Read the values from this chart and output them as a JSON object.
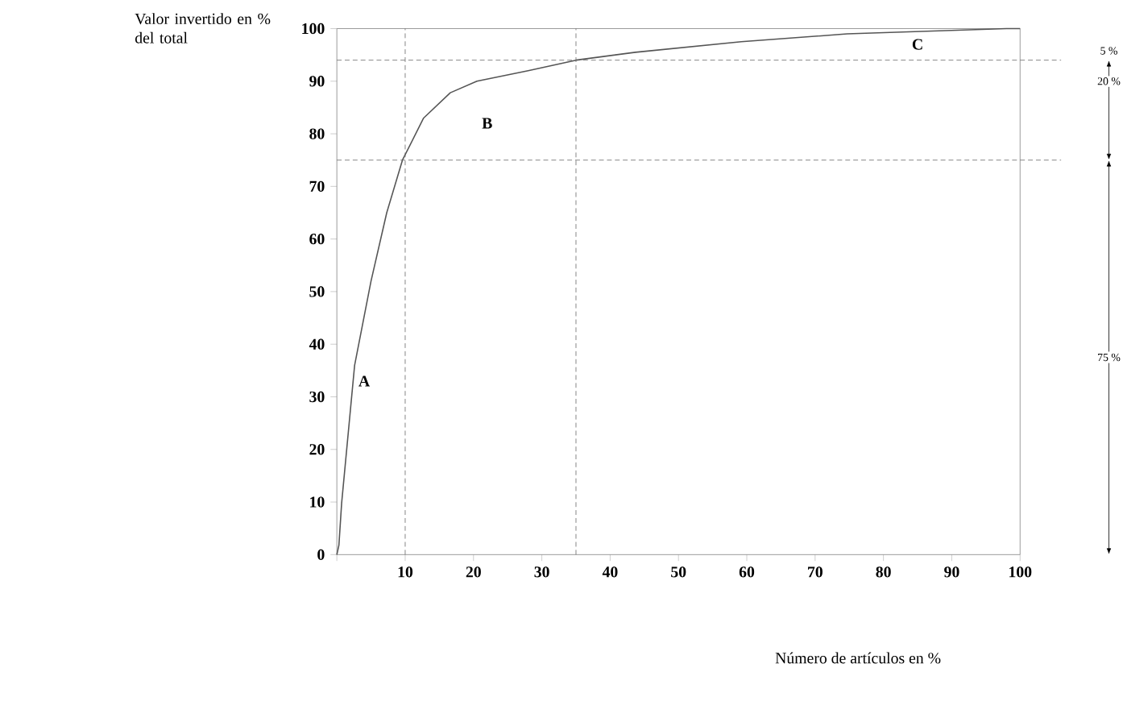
{
  "chart_data": {
    "type": "line",
    "xlabel": "Número de artículos en %",
    "ylabel": "Valor invertido en % del total",
    "x": [
      0,
      0.3,
      0.7,
      2.6,
      5,
      7.3,
      9.6,
      12.7,
      16.6,
      20.5,
      28,
      35,
      43.7,
      59.2,
      74.7,
      98,
      100
    ],
    "series": [
      {
        "color": "#555555",
        "values": [
          0,
          1.8,
          9.8,
          36,
          52,
          65,
          75,
          83,
          87.8,
          90,
          92,
          94,
          95.5,
          97.5,
          99,
          100,
          100
        ]
      }
    ],
    "xlim": [
      0,
      100
    ],
    "ylim": [
      0,
      100
    ],
    "xticks": [
      {
        "value": 0,
        "label": null
      },
      10,
      20,
      30,
      40,
      50,
      60,
      70,
      80,
      90,
      100
    ],
    "yticks": [
      0,
      10,
      20,
      30,
      40,
      50,
      60,
      70,
      80,
      90,
      100
    ],
    "grid": false,
    "marker": "none",
    "line_style": "solid",
    "ref_lines": [
      {
        "axis": "x",
        "value": 10,
        "color": "#666666",
        "line_style": "dashed"
      },
      {
        "axis": "x",
        "value": 35,
        "color": "#666666",
        "line_style": "dashed"
      },
      {
        "axis": "y",
        "value": 75,
        "color": "#666666",
        "line_style": "dashed"
      },
      {
        "axis": "y",
        "value": 94,
        "color": "#666666",
        "line_style": "dashed"
      }
    ],
    "annotations": [
      "A",
      "B",
      "C",
      "5 %",
      "20 %",
      "75 %"
    ]
  }
}
